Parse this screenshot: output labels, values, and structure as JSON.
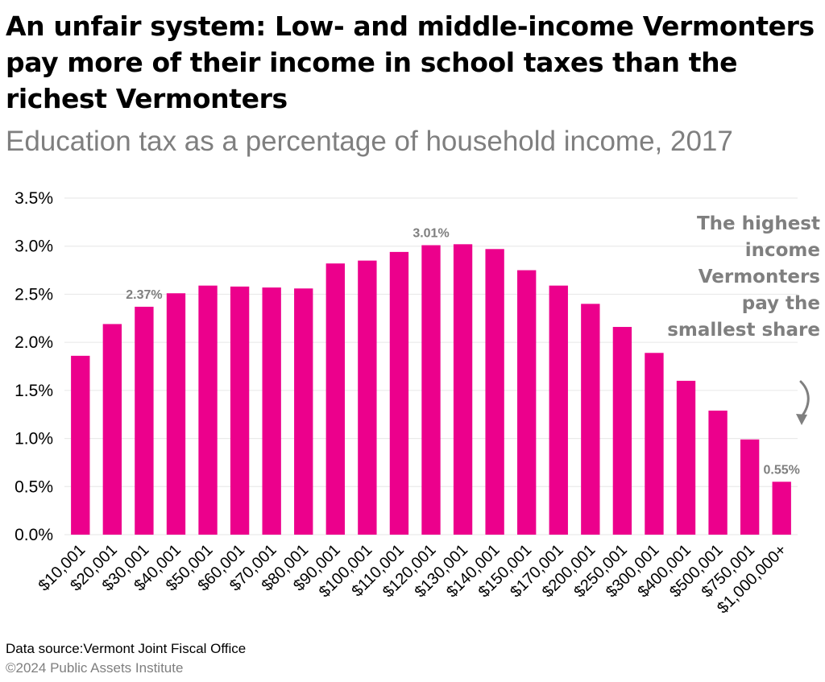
{
  "title": "An unfair system: Low- and middle-income Vermonters pay more of their income in school taxes than the richest Vermonters",
  "subtitle": "Education tax as a percentage of household income, 2017",
  "annotation": "The highest income Vermonters pay the smallest share",
  "footer": {
    "source": "Data source:Vermont Joint Fiscal Office",
    "copyright": "©2024 Public Assets Institute"
  },
  "colors": {
    "bar": "#ec008c",
    "label": "#7f7f7f",
    "grid": "#e6e6e6",
    "title": "#000000",
    "subtitle": "#7f7f7f"
  },
  "icons": {
    "annotation_arrow": "curved-arrow-down-icon"
  },
  "chart_data": {
    "type": "bar",
    "categories": [
      "$10,001",
      "$20,001",
      "$30,001",
      "$40,001",
      "$50,001",
      "$60,001",
      "$70,001",
      "$80,001",
      "$90,001",
      "$100,001",
      "$110,001",
      "$120,001",
      "$130,001",
      "$140,001",
      "$150,001",
      "$170,001",
      "$200,001",
      "$250,001",
      "$300,001",
      "$400,001",
      "$500,001",
      "$750,001",
      "$1,000,000+"
    ],
    "values": [
      1.86,
      2.19,
      2.37,
      2.51,
      2.59,
      2.58,
      2.57,
      2.56,
      2.82,
      2.85,
      2.94,
      3.01,
      3.02,
      2.97,
      2.75,
      2.59,
      2.4,
      2.16,
      1.89,
      1.6,
      1.29,
      0.99,
      0.55
    ],
    "data_labels": [
      {
        "category": "$30,001",
        "text": "2.37%"
      },
      {
        "category": "$120,001",
        "text": "3.01%"
      },
      {
        "category": "$1,000,000+",
        "text": "0.55%"
      }
    ],
    "yticks": [
      "0.0%",
      "0.5%",
      "1.0%",
      "1.5%",
      "2.0%",
      "2.5%",
      "3.0%",
      "3.5%"
    ],
    "ylim": [
      0,
      3.5
    ],
    "ystep": 0.5,
    "grid": true,
    "legend": "none"
  }
}
